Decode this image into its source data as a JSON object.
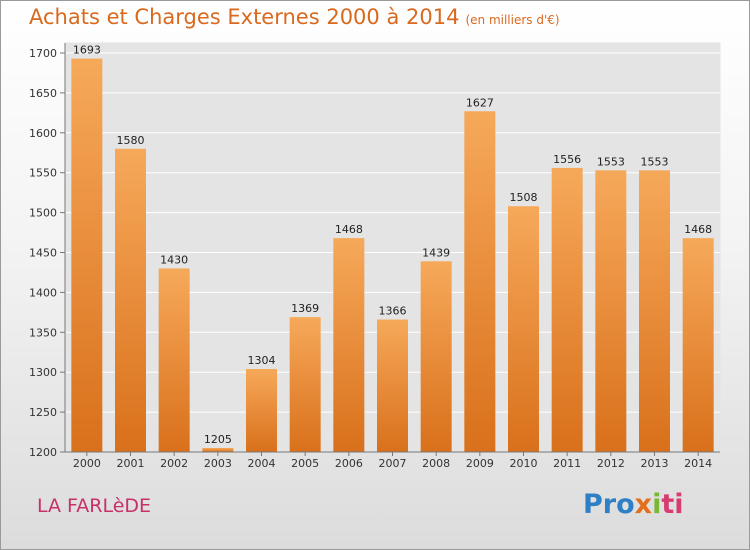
{
  "header": {
    "title": "Achats et Charges Externes 2000 à 2014",
    "subtitle": "(en milliers d'€)"
  },
  "footer": {
    "town": "LA FARLèDE",
    "logo": [
      "Pro",
      "x",
      "i",
      "ti"
    ]
  },
  "colors": {
    "bar_top": "#f6a95a",
    "bar_bottom": "#d9701b",
    "title": "#d9691e",
    "town": "#c8306a"
  },
  "chart_data": {
    "type": "bar",
    "title": "Achats et Charges Externes 2000 à 2014",
    "subtitle": "(en milliers d'€)",
    "categories": [
      "2000",
      "2001",
      "2002",
      "2003",
      "2004",
      "2005",
      "2006",
      "2007",
      "2008",
      "2009",
      "2010",
      "2011",
      "2012",
      "2013",
      "2014"
    ],
    "values": [
      1693,
      1580,
      1430,
      1205,
      1304,
      1369,
      1468,
      1366,
      1439,
      1627,
      1508,
      1556,
      1553,
      1553,
      1468
    ],
    "ylim": [
      1200,
      1700
    ],
    "yticks": [
      1200,
      1250,
      1300,
      1350,
      1400,
      1450,
      1500,
      1550,
      1600,
      1650,
      1700
    ],
    "grid": true,
    "xlabel": "",
    "ylabel": ""
  }
}
